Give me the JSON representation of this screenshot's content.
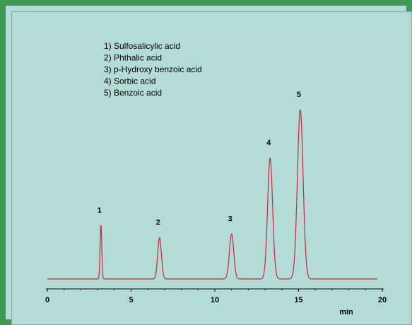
{
  "chart_data": {
    "type": "line",
    "title": "",
    "xlabel": "min",
    "ylabel": "",
    "xlim": [
      0,
      20
    ],
    "ylim": [
      0,
      1
    ],
    "x_ticks": [
      0,
      5,
      10,
      15,
      20
    ],
    "grid": false,
    "legend": {
      "placement": "top-left",
      "entries": [
        "1) Sulfosalicylic acid",
        "2) Phthalic acid",
        "3) p-Hydroxy benzoic acid",
        "4) Sorbic acid",
        "5) Benzoic acid"
      ]
    },
    "peaks": [
      {
        "label": "1",
        "x": 3.2,
        "y": 0.31,
        "width": 0.05
      },
      {
        "label": "2",
        "x": 6.7,
        "y": 0.24,
        "width": 0.11
      },
      {
        "label": "3",
        "x": 11.0,
        "y": 0.26,
        "width": 0.13
      },
      {
        "label": "4",
        "x": 13.3,
        "y": 0.7,
        "width": 0.15
      },
      {
        "label": "5",
        "x": 15.1,
        "y": 0.98,
        "width": 0.17
      }
    ],
    "baseline": 0.0,
    "line_color": "#d4203a",
    "axis_color": "#000000"
  }
}
